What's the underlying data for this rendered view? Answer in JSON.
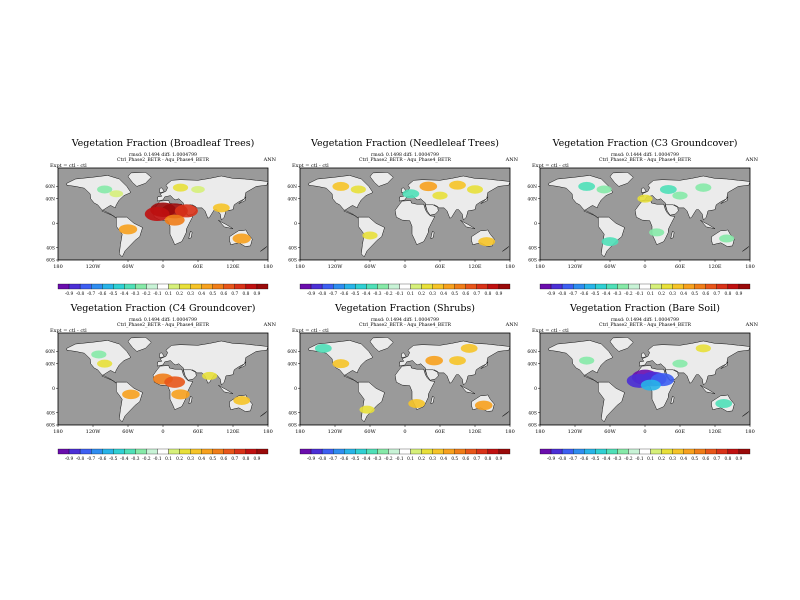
{
  "page": {
    "background": "#ffffff"
  },
  "chart_data": [
    {
      "type": "heatmap",
      "title": "Vegetation Fraction (Broadleaf Trees)",
      "stats_line": "rmsd: 0.1494 diff: 1.0004799",
      "case_line": "Ctrl_Phase2_BETR - Aqu_Phase4_BETR",
      "expt_label": "Expt = ctl - ctl",
      "season": "ANN",
      "x_ticks": [
        "180",
        "120W",
        "60W",
        "0",
        "60E",
        "120E",
        "180"
      ],
      "y_ticks": [
        "60N",
        "40N",
        "0",
        "40S",
        "60S"
      ],
      "xlim": [
        -180,
        180
      ],
      "ylim": [
        -60,
        90
      ],
      "colorbar_labels": [
        "-0.9",
        "-0.8",
        "-0.7",
        "-0.6",
        "-0.5",
        "-0.4",
        "-0.3",
        "-0.2",
        "-0.1",
        "0.1",
        "0.2",
        "0.3",
        "0.4",
        "0.5",
        "0.6",
        "0.7",
        "0.8",
        "0.9"
      ],
      "blobs": [
        {
          "lon": -100,
          "lat": 55,
          "v": -0.2
        },
        {
          "lon": -80,
          "lat": 48,
          "v": 0.1
        },
        {
          "lon": 30,
          "lat": 58,
          "v": 0.2
        },
        {
          "lon": 60,
          "lat": 55,
          "v": 0.1
        },
        {
          "lon": 0,
          "lat": 22,
          "v": 0.85
        },
        {
          "lon": 20,
          "lat": 20,
          "v": 0.9
        },
        {
          "lon": -10,
          "lat": 15,
          "v": 0.8
        },
        {
          "lon": 40,
          "lat": 20,
          "v": 0.7
        },
        {
          "lon": 20,
          "lat": 5,
          "v": 0.5
        },
        {
          "lon": -60,
          "lat": -10,
          "v": 0.4
        },
        {
          "lon": 135,
          "lat": -25,
          "v": 0.4
        },
        {
          "lon": 100,
          "lat": 25,
          "v": 0.3
        }
      ]
    },
    {
      "type": "heatmap",
      "title": "Vegetation Fraction (Needleleaf Trees)",
      "stats_line": "rmsd: 0.1498 diff: 1.0004799",
      "case_line": "Ctrl_Phase2_BETR - Aqu_Phase4_BETR",
      "expt_label": "Expt = ctl - ctl",
      "season": "ANN",
      "x_ticks": [
        "180",
        "120W",
        "60W",
        "0",
        "60E",
        "120E",
        "180"
      ],
      "y_ticks": [
        "60N",
        "40N",
        "0",
        "40S",
        "60S"
      ],
      "xlim": [
        -180,
        180
      ],
      "ylim": [
        -60,
        90
      ],
      "colorbar_labels": [
        "-0.9",
        "-0.8",
        "-0.7",
        "-0.6",
        "-0.5",
        "-0.4",
        "-0.3",
        "-0.2",
        "-0.1",
        "0.1",
        "0.2",
        "0.3",
        "0.4",
        "0.5",
        "0.6",
        "0.7",
        "0.8",
        "0.9"
      ],
      "blobs": [
        {
          "lon": -110,
          "lat": 60,
          "v": 0.3
        },
        {
          "lon": -80,
          "lat": 55,
          "v": 0.2
        },
        {
          "lon": 40,
          "lat": 60,
          "v": 0.35
        },
        {
          "lon": 90,
          "lat": 62,
          "v": 0.3
        },
        {
          "lon": 120,
          "lat": 55,
          "v": 0.25
        },
        {
          "lon": 10,
          "lat": 48,
          "v": -0.3
        },
        {
          "lon": 60,
          "lat": 45,
          "v": 0.2
        },
        {
          "lon": 140,
          "lat": -30,
          "v": 0.3
        },
        {
          "lon": -60,
          "lat": -20,
          "v": 0.2
        }
      ]
    },
    {
      "type": "heatmap",
      "title": "Vegetation Fraction (C3 Groundcover)",
      "stats_line": "rmsd: 0.1444 diff: 1.0004799",
      "case_line": "Ctrl_Phase2_BETR - Aqu_Phase4_BETR",
      "expt_label": "Expt = ctl - ctl",
      "season": "ANN",
      "x_ticks": [
        "180",
        "120W",
        "60W",
        "0",
        "60E",
        "120E",
        "180"
      ],
      "y_ticks": [
        "60N",
        "40N",
        "0",
        "40S",
        "60S"
      ],
      "xlim": [
        -180,
        180
      ],
      "ylim": [
        -60,
        90
      ],
      "colorbar_labels": [
        "-0.9",
        "-0.8",
        "-0.7",
        "-0.6",
        "-0.5",
        "-0.4",
        "-0.3",
        "-0.2",
        "-0.1",
        "0.1",
        "0.2",
        "0.3",
        "0.4",
        "0.5",
        "0.6",
        "0.7",
        "0.8",
        "0.9"
      ],
      "blobs": [
        {
          "lon": -100,
          "lat": 60,
          "v": -0.3
        },
        {
          "lon": -70,
          "lat": 55,
          "v": -0.2
        },
        {
          "lon": 40,
          "lat": 55,
          "v": -0.3
        },
        {
          "lon": 100,
          "lat": 58,
          "v": -0.25
        },
        {
          "lon": 0,
          "lat": 40,
          "v": 0.2
        },
        {
          "lon": 60,
          "lat": 45,
          "v": -0.2
        },
        {
          "lon": 20,
          "lat": -15,
          "v": -0.2
        },
        {
          "lon": -60,
          "lat": -30,
          "v": -0.3
        },
        {
          "lon": 140,
          "lat": -25,
          "v": -0.2
        }
      ]
    },
    {
      "type": "heatmap",
      "title": "Vegetation Fraction (C4 Groundcover)",
      "stats_line": "rmsd: 0.1494 diff: 1.0004799",
      "case_line": "Ctrl_Phase2_BETR - Aqu_Phase4_BETR",
      "expt_label": "Expt = ctl - ctl",
      "season": "ANN",
      "x_ticks": [
        "180",
        "120W",
        "60W",
        "0",
        "60E",
        "120E",
        "180"
      ],
      "y_ticks": [
        "60N",
        "40N",
        "0",
        "40S",
        "60S"
      ],
      "xlim": [
        -180,
        180
      ],
      "ylim": [
        -60,
        90
      ],
      "colorbar_labels": [
        "-0.9",
        "-0.8",
        "-0.7",
        "-0.6",
        "-0.5",
        "-0.4",
        "-0.3",
        "-0.2",
        "-0.1",
        "0.1",
        "0.2",
        "0.3",
        "0.4",
        "0.5",
        "0.6",
        "0.7",
        "0.8",
        "0.9"
      ],
      "blobs": [
        {
          "lon": -100,
          "lat": 40,
          "v": 0.2
        },
        {
          "lon": -110,
          "lat": 55,
          "v": -0.2
        },
        {
          "lon": 0,
          "lat": 15,
          "v": 0.5
        },
        {
          "lon": 20,
          "lat": 10,
          "v": 0.55
        },
        {
          "lon": 30,
          "lat": -10,
          "v": 0.4
        },
        {
          "lon": -55,
          "lat": -10,
          "v": 0.35
        },
        {
          "lon": 80,
          "lat": 20,
          "v": 0.2
        },
        {
          "lon": 135,
          "lat": -20,
          "v": 0.3
        }
      ]
    },
    {
      "type": "heatmap",
      "title": "Vegetation Fraction (Shrubs)",
      "stats_line": "rmsd: 0.1494 diff: 1.0004799",
      "case_line": "Ctrl_Phase2_BETR - Aqu_Phase4_BETR",
      "expt_label": "Expt = ctl - ctl",
      "season": "ANN",
      "x_ticks": [
        "180",
        "120W",
        "60W",
        "0",
        "60E",
        "120E",
        "180"
      ],
      "y_ticks": [
        "60N",
        "40N",
        "0",
        "40S",
        "60S"
      ],
      "xlim": [
        -180,
        180
      ],
      "ylim": [
        -60,
        90
      ],
      "colorbar_labels": [
        "-0.9",
        "-0.8",
        "-0.7",
        "-0.6",
        "-0.5",
        "-0.4",
        "-0.3",
        "-0.2",
        "-0.1",
        "0.1",
        "0.2",
        "0.3",
        "0.4",
        "0.5",
        "0.6",
        "0.7",
        "0.8",
        "0.9"
      ],
      "blobs": [
        {
          "lon": -140,
          "lat": 65,
          "v": -0.3
        },
        {
          "lon": -110,
          "lat": 40,
          "v": 0.3
        },
        {
          "lon": 50,
          "lat": 45,
          "v": 0.35
        },
        {
          "lon": 90,
          "lat": 45,
          "v": 0.3
        },
        {
          "lon": 110,
          "lat": 65,
          "v": 0.3
        },
        {
          "lon": 20,
          "lat": -25,
          "v": 0.3
        },
        {
          "lon": -65,
          "lat": -35,
          "v": 0.2
        },
        {
          "lon": 135,
          "lat": -28,
          "v": 0.35
        }
      ]
    },
    {
      "type": "heatmap",
      "title": "Vegetation Fraction (Bare Soil)",
      "stats_line": "rmsd: 0.1494 diff: 1.0004799",
      "case_line": "Ctrl_Phase2_BETR - Aqu_Phase4_BETR",
      "expt_label": "Expt = ctl - ctl",
      "season": "ANN",
      "x_ticks": [
        "180",
        "120W",
        "60W",
        "0",
        "60E",
        "120E",
        "180"
      ],
      "y_ticks": [
        "60N",
        "40N",
        "0",
        "40S",
        "60S"
      ],
      "xlim": [
        -180,
        180
      ],
      "ylim": [
        -60,
        90
      ],
      "colorbar_labels": [
        "-0.9",
        "-0.8",
        "-0.7",
        "-0.6",
        "-0.5",
        "-0.4",
        "-0.3",
        "-0.2",
        "-0.1",
        "0.1",
        "0.2",
        "0.3",
        "0.4",
        "0.5",
        "0.6",
        "0.7",
        "0.8",
        "0.9"
      ],
      "blobs": [
        {
          "lon": 0,
          "lat": 18,
          "v": -0.9
        },
        {
          "lon": 15,
          "lat": 15,
          "v": -0.85
        },
        {
          "lon": -10,
          "lat": 12,
          "v": -0.8
        },
        {
          "lon": 30,
          "lat": 14,
          "v": -0.7
        },
        {
          "lon": 10,
          "lat": 5,
          "v": -0.5
        },
        {
          "lon": -100,
          "lat": 45,
          "v": -0.2
        },
        {
          "lon": 60,
          "lat": 40,
          "v": -0.2
        },
        {
          "lon": 135,
          "lat": -25,
          "v": -0.3
        },
        {
          "lon": 100,
          "lat": 65,
          "v": 0.2
        }
      ]
    }
  ]
}
